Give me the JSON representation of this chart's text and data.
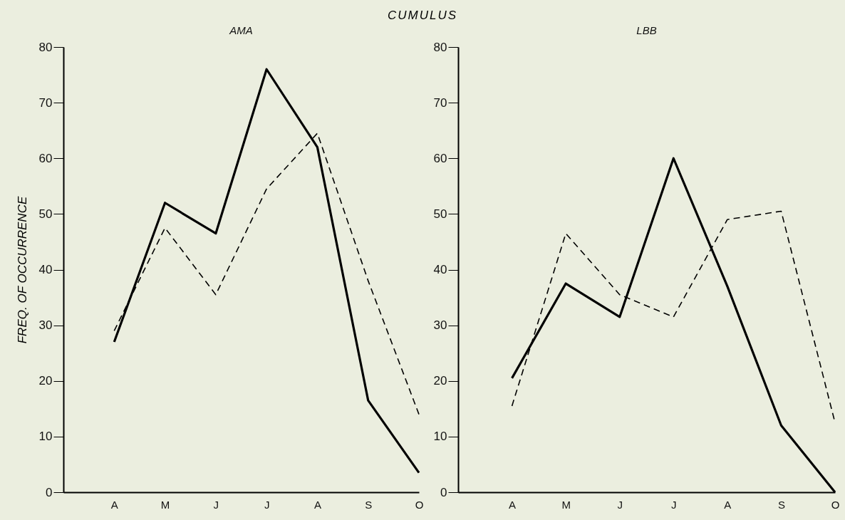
{
  "chart_data": [
    {
      "type": "line",
      "title": "AMA",
      "ylabel": "FREQ. OF OCCURRENCE",
      "annotations": [
        "CUMULUS"
      ],
      "categories": [
        null,
        "A",
        "M",
        "J",
        "J",
        "A",
        "S",
        "O"
      ],
      "ylim": [
        0,
        80
      ],
      "yticks": [
        0,
        10,
        20,
        30,
        40,
        50,
        60,
        70,
        80
      ],
      "grid": false,
      "marker": "none",
      "series": [
        {
          "color": "#000000",
          "line_style": "solid",
          "values": [
            null,
            27,
            52,
            46.5,
            76,
            62,
            16.5,
            3.5
          ]
        },
        {
          "color": "#000000",
          "line_style": "dashed",
          "values": [
            null,
            29,
            47.5,
            35.5,
            54.5,
            64.5,
            38,
            14
          ]
        }
      ]
    },
    {
      "type": "line",
      "title": "LBB",
      "categories": [
        null,
        "A",
        "M",
        "J",
        "J",
        "A",
        "S",
        "O"
      ],
      "ylim": [
        0,
        80
      ],
      "yticks": [
        0,
        10,
        20,
        30,
        40,
        50,
        60,
        70,
        80
      ],
      "grid": false,
      "marker": "none",
      "series": [
        {
          "color": "#000000",
          "line_style": "solid",
          "values": [
            null,
            20.5,
            37.5,
            31.5,
            60,
            37,
            12,
            0
          ]
        },
        {
          "color": "#000000",
          "line_style": "dashed",
          "values": [
            null,
            15.5,
            46.5,
            35.5,
            31.5,
            49,
            50.5,
            12.5
          ]
        }
      ]
    }
  ]
}
